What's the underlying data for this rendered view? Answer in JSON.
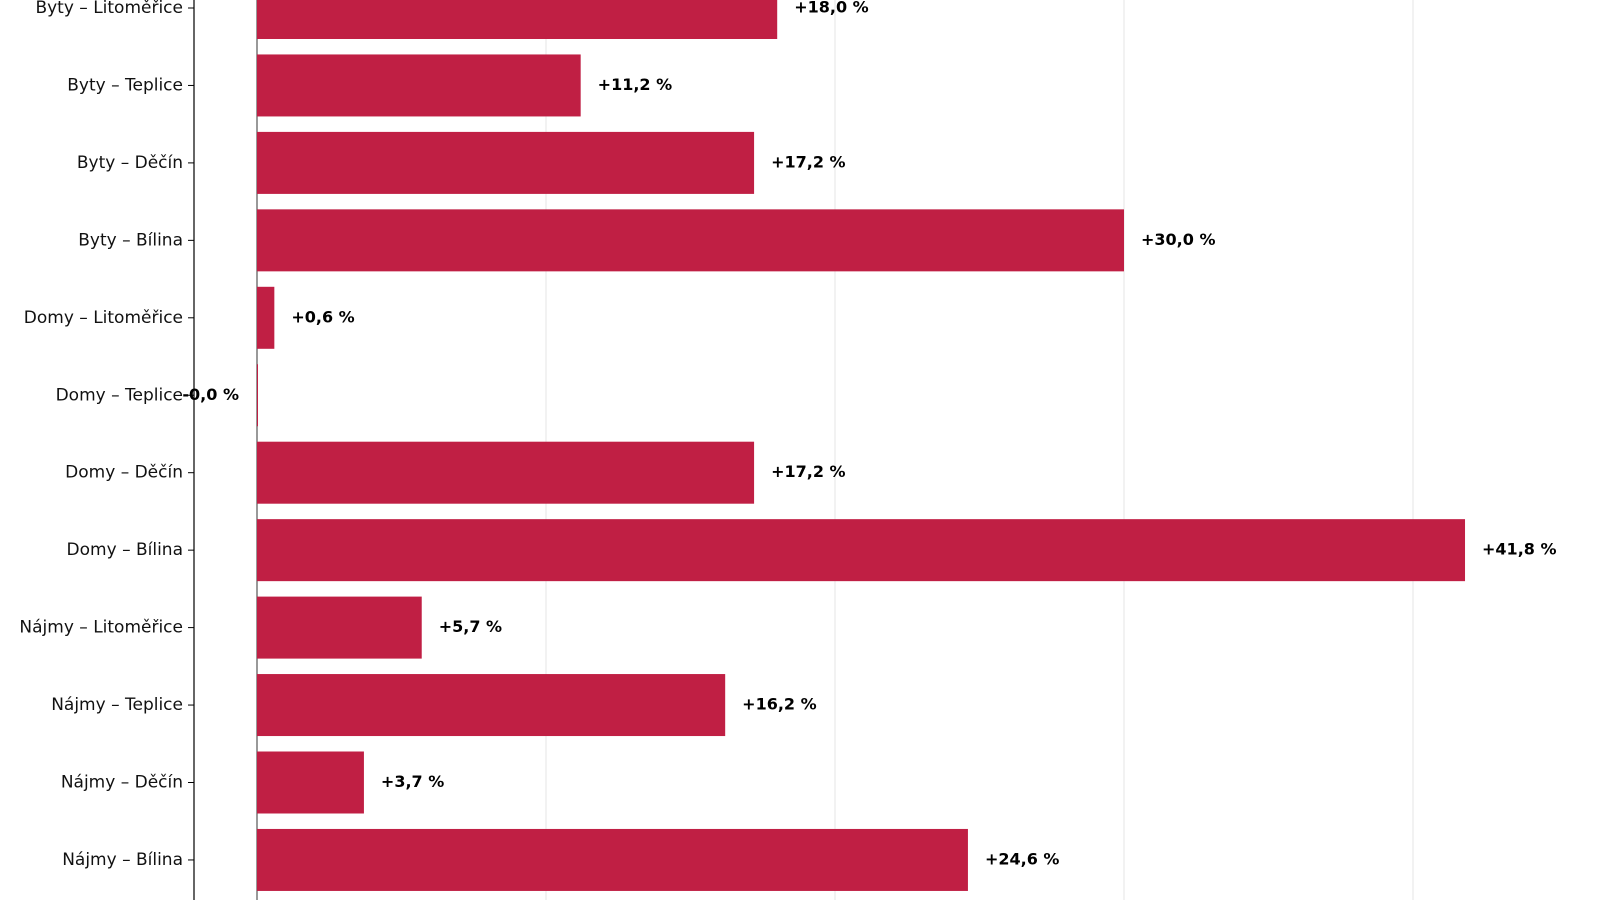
{
  "chart_data": {
    "type": "bar",
    "orientation": "horizontal",
    "categories": [
      "Byty – Litoměřice",
      "Byty – Teplice",
      "Byty – Děčín",
      "Byty – Bílina",
      "Domy – Litoměřice",
      "Domy – Teplice",
      "Domy – Děčín",
      "Domy – Bílina",
      "Nájmy – Litoměřice",
      "Nájmy – Teplice",
      "Nájmy – Děčín",
      "Nájmy – Bílina"
    ],
    "values": [
      18.0,
      11.2,
      17.2,
      30.0,
      0.6,
      -0.0,
      17.2,
      41.8,
      5.7,
      16.2,
      3.7,
      24.6
    ],
    "value_labels": [
      "+18,0 %",
      "+11,2 %",
      "+17,2 %",
      "+30,0 %",
      "+0,6 %",
      "-0,0 %",
      "+17,2 %",
      "+41,8 %",
      "+5,7 %",
      "+16,2 %",
      "+3,7 %",
      "+24,6 %"
    ],
    "xlim": [
      -2.2,
      45.2
    ],
    "x_gridlines": [
      0,
      10,
      20,
      30,
      40
    ],
    "grid": "vertical",
    "bar_color": "#c01f44",
    "title": "",
    "xlabel": "",
    "ylabel": ""
  }
}
